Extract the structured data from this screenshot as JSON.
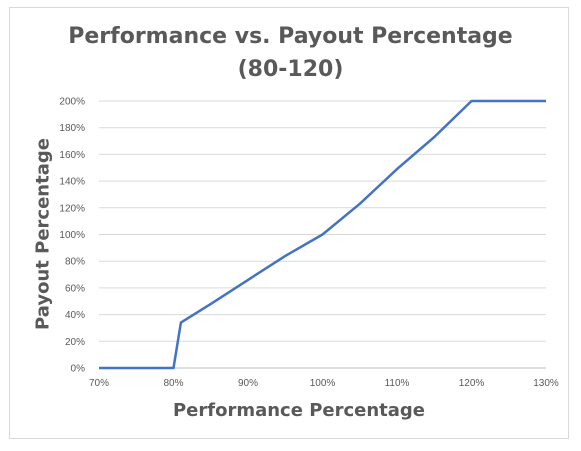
{
  "chart_data": {
    "type": "line",
    "title": "Performance vs. Payout Percentage\n(80-120)",
    "xlabel": "Performance Percentage",
    "ylabel": "Payout Percentage",
    "xlim": [
      70,
      130
    ],
    "ylim": [
      0,
      200
    ],
    "x_ticks": [
      "70%",
      "80%",
      "90%",
      "100%",
      "110%",
      "120%",
      "130%"
    ],
    "y_ticks": [
      "0%",
      "20%",
      "40%",
      "60%",
      "80%",
      "100%",
      "120%",
      "140%",
      "160%",
      "180%",
      "200%"
    ],
    "grid": true,
    "legend": "none",
    "series": [
      {
        "color": "#4472c4",
        "x": [
          70,
          80,
          81,
          85,
          90,
          95,
          100,
          105,
          110,
          115,
          120,
          130
        ],
        "y": [
          0,
          0,
          34,
          48,
          66,
          84,
          100,
          123,
          149,
          173,
          200,
          200
        ]
      }
    ]
  }
}
